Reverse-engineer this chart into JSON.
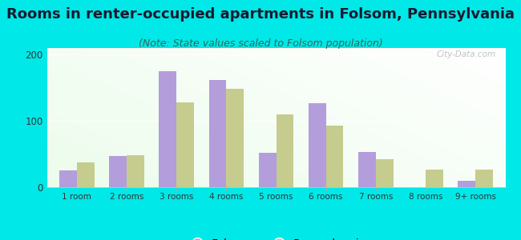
{
  "title": "Rooms in renter-occupied apartments in Folsom, Pennsylvania",
  "subtitle": "(Note: State values scaled to Folsom population)",
  "categories": [
    "1 room",
    "2 rooms",
    "3 rooms",
    "4 rooms",
    "5 rooms",
    "6 rooms",
    "7 rooms",
    "8 rooms",
    "9+ rooms"
  ],
  "folsom_values": [
    25,
    47,
    175,
    162,
    52,
    127,
    53,
    0,
    10
  ],
  "pennsylvania_values": [
    37,
    48,
    128,
    148,
    110,
    93,
    42,
    27,
    27
  ],
  "folsom_color": "#b39ddb",
  "pennsylvania_color": "#c5cc8e",
  "ylim": [
    0,
    210
  ],
  "yticks": [
    0,
    100,
    200
  ],
  "background_color": "#00e8e8",
  "title_fontsize": 13,
  "subtitle_fontsize": 9,
  "watermark": "City-Data.com",
  "bar_width": 0.35
}
